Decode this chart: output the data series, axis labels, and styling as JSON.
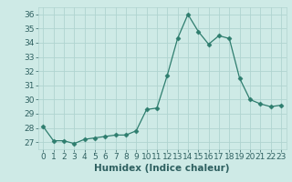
{
  "x": [
    0,
    1,
    2,
    3,
    4,
    5,
    6,
    7,
    8,
    9,
    10,
    11,
    12,
    13,
    14,
    15,
    16,
    17,
    18,
    19,
    20,
    21,
    22,
    23
  ],
  "y": [
    28.1,
    27.1,
    27.1,
    26.9,
    27.2,
    27.3,
    27.4,
    27.5,
    27.5,
    27.8,
    29.3,
    29.4,
    31.7,
    34.3,
    36.0,
    34.8,
    33.9,
    34.5,
    34.3,
    31.5,
    30.0,
    29.7,
    29.5,
    29.6
  ],
  "line_color": "#2e7d6e",
  "marker": "D",
  "marker_size": 2.5,
  "bg_color": "#ceeae6",
  "grid_color": "#b0d4d0",
  "xlabel": "Humidex (Indice chaleur)",
  "ylim": [
    26.5,
    36.5
  ],
  "yticks": [
    27,
    28,
    29,
    30,
    31,
    32,
    33,
    34,
    35,
    36
  ],
  "xticks": [
    0,
    1,
    2,
    3,
    4,
    5,
    6,
    7,
    8,
    9,
    10,
    11,
    12,
    13,
    14,
    15,
    16,
    17,
    18,
    19,
    20,
    21,
    22,
    23
  ],
  "tick_color": "#2e6060",
  "label_color": "#2e6060",
  "font_size": 6.5
}
